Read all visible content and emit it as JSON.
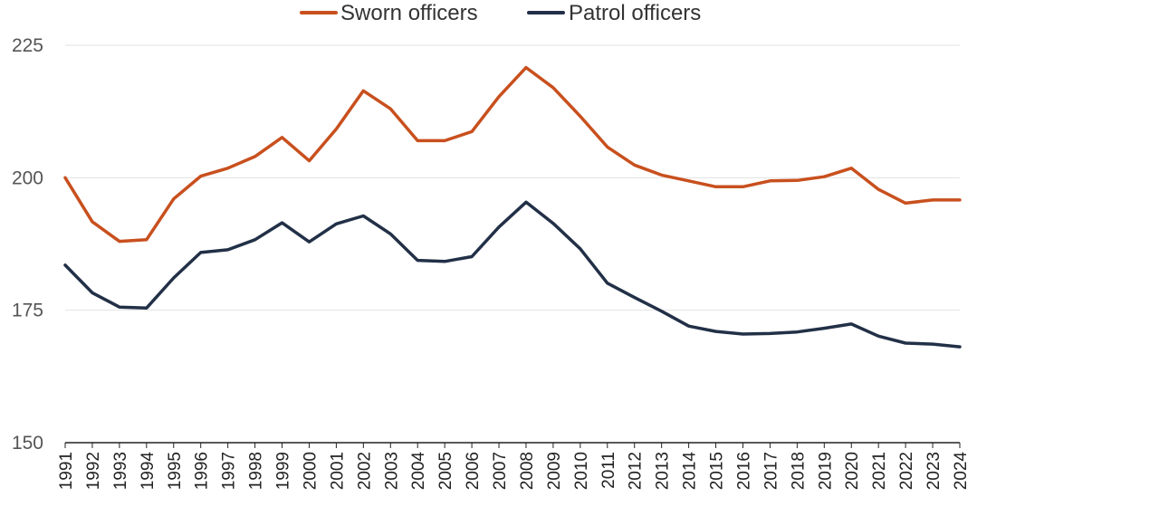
{
  "chart_data": {
    "type": "line",
    "title": "",
    "xlabel": "",
    "ylabel": "",
    "ylim": [
      150,
      225
    ],
    "yticks": [
      150,
      175,
      200,
      225
    ],
    "grid": true,
    "legend_position": "top-center",
    "x": [
      "1991",
      "1992",
      "1993",
      "1994",
      "1995",
      "1996",
      "1997",
      "1998",
      "1999",
      "2000",
      "2001",
      "2002",
      "2003",
      "2004",
      "2005",
      "2006",
      "2007",
      "2008",
      "2009",
      "2010",
      "2011",
      "2012",
      "2013",
      "2014",
      "2015",
      "2016",
      "2017",
      "2018",
      "2019",
      "2020",
      "2021",
      "2022",
      "2023",
      "2024"
    ],
    "series": [
      {
        "name": "Sworn officers",
        "color": "#c8501e",
        "values": [
          200.0,
          191.7,
          188.0,
          188.3,
          196.0,
          200.3,
          201.8,
          204.0,
          207.6,
          203.2,
          209.2,
          216.4,
          213.0,
          207.0,
          207.0,
          208.7,
          215.3,
          220.8,
          217.0,
          211.6,
          205.8,
          202.4,
          200.5,
          199.4,
          198.3,
          198.3,
          199.4,
          199.5,
          200.2,
          201.8,
          197.8,
          195.2,
          195.8,
          195.8
        ]
      },
      {
        "name": "Patrol officers",
        "color": "#223047",
        "values": [
          183.5,
          178.3,
          175.6,
          175.4,
          181.1,
          185.9,
          186.4,
          188.3,
          191.5,
          187.9,
          191.3,
          192.8,
          189.4,
          184.4,
          184.2,
          185.1,
          190.7,
          195.4,
          191.4,
          186.6,
          180.1,
          177.4,
          174.8,
          172.0,
          171.0,
          170.5,
          170.6,
          170.9,
          171.6,
          172.4,
          170.1,
          168.8,
          168.6,
          168.1
        ]
      }
    ]
  }
}
